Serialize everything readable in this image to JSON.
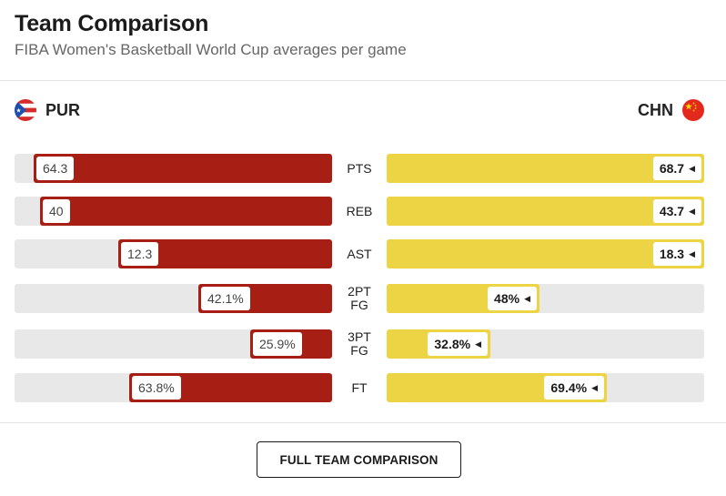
{
  "header": {
    "title": "Team Comparison",
    "subtitle": "FIBA Women's Basketball World Cup averages per game"
  },
  "teams": {
    "left": {
      "abbr": "PUR",
      "flag": "puerto-rico-flag-icon",
      "bar_color": "#a61e14"
    },
    "right": {
      "abbr": "CHN",
      "flag": "china-flag-icon",
      "bar_color": "#ecd444"
    }
  },
  "stats": [
    {
      "label": "PTS",
      "left_value": "64.3",
      "right_value": "68.7",
      "left_fraction": 0.94,
      "right_fraction": 1.0
    },
    {
      "label": "REB",
      "left_value": "40",
      "right_value": "43.7",
      "left_fraction": 0.92,
      "right_fraction": 1.0
    },
    {
      "label": "AST",
      "left_value": "12.3",
      "right_value": "18.3",
      "left_fraction": 0.672,
      "right_fraction": 1.0
    },
    {
      "label": "2PT FG",
      "left_value": "42.1%",
      "right_value": "48%",
      "left_fraction": 0.421,
      "right_fraction": 0.48
    },
    {
      "label": "3PT FG",
      "left_value": "25.9%",
      "right_value": "32.8%",
      "left_fraction": 0.259,
      "right_fraction": 0.328
    },
    {
      "label": "FT",
      "left_value": "63.8%",
      "right_value": "69.4%",
      "left_fraction": 0.638,
      "right_fraction": 0.694
    }
  ],
  "footer": {
    "button_label": "FULL TEAM COMPARISON"
  }
}
